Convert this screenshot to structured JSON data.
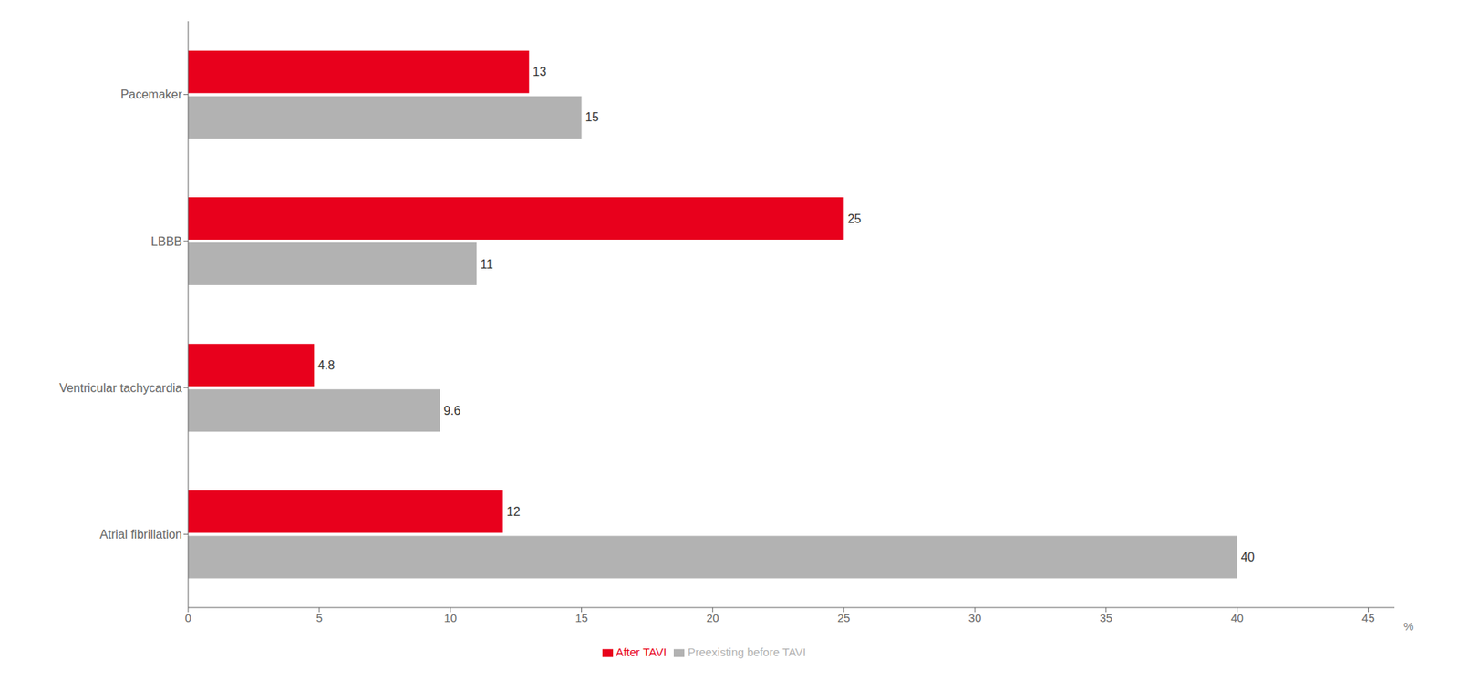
{
  "chart_data": {
    "type": "bar",
    "orientation": "horizontal",
    "categories": [
      "Pacemaker",
      "LBBB",
      "Ventricular tachycardia",
      "Atrial fibrillation"
    ],
    "series": [
      {
        "name": "After TAVI",
        "color": "#e8001c",
        "values": [
          13,
          25,
          4.8,
          12
        ]
      },
      {
        "name": "Preexisting before TAVI",
        "color": "#b2b2b2",
        "values": [
          15,
          11,
          9.6,
          40
        ]
      }
    ],
    "xlabel": "%",
    "xlim": [
      0,
      46
    ],
    "xticks": [
      0,
      5,
      10,
      15,
      20,
      25,
      30,
      35,
      40,
      45
    ],
    "grid": false,
    "legend": "bottom",
    "data_labels": true
  }
}
